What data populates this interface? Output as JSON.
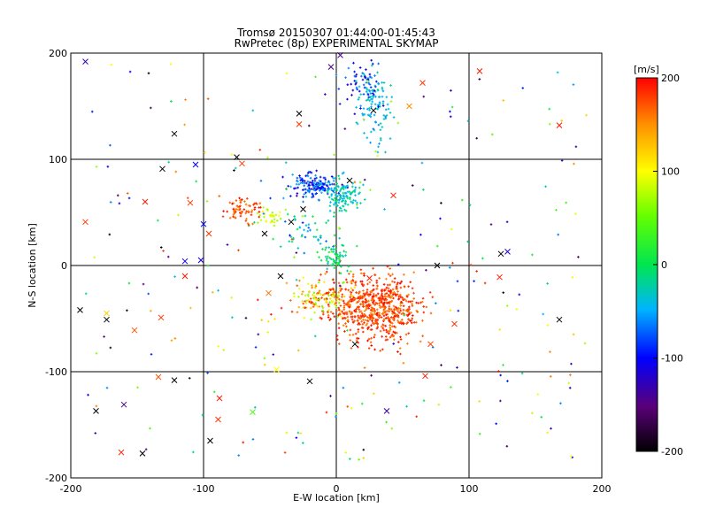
{
  "chart_data": {
    "type": "scatter",
    "title": "Tromsø 20150307 01:44:00-01:45:43",
    "subtitle": "RwPretec (8p) EXPERIMENTAL SKYMAP",
    "xlabel": "E-W location [km]",
    "ylabel": "N-S location [km]",
    "xlim": [
      -200,
      200
    ],
    "ylim": [
      -200,
      200
    ],
    "x_ticks": [
      "-200",
      "-100",
      "0",
      "100",
      "200"
    ],
    "y_ticks": [
      "-200",
      "-100",
      "0",
      "100",
      "200"
    ],
    "grid": true,
    "colorbar": {
      "label": "[m/s]",
      "range": [
        -200,
        200
      ],
      "ticks": [
        "-200",
        "-100",
        "0",
        "100",
        "200"
      ],
      "colormap": "rainbow (black-purple-blue-cyan-green-yellow-orange-red)"
    },
    "clusters": [
      {
        "cx": 30,
        "cy": -40,
        "rx": 30,
        "ry": 28,
        "count": 650,
        "v": [
          150,
          200
        ]
      },
      {
        "cx": -10,
        "cy": -30,
        "rx": 22,
        "ry": 18,
        "count": 160,
        "v": [
          40,
          200
        ]
      },
      {
        "cx": 0,
        "cy": 8,
        "rx": 8,
        "ry": 12,
        "count": 60,
        "v": [
          -40,
          30
        ]
      },
      {
        "cx": -15,
        "cy": 75,
        "rx": 18,
        "ry": 10,
        "count": 160,
        "v": [
          -130,
          -40
        ]
      },
      {
        "cx": 5,
        "cy": 65,
        "rx": 12,
        "ry": 16,
        "count": 120,
        "v": [
          -60,
          0
        ]
      },
      {
        "cx": 30,
        "cy": 150,
        "rx": 12,
        "ry": 35,
        "count": 110,
        "v": [
          -60,
          -20
        ]
      },
      {
        "cx": 20,
        "cy": 175,
        "rx": 15,
        "ry": 20,
        "count": 50,
        "v": [
          -120,
          -60
        ]
      },
      {
        "cx": -70,
        "cy": 52,
        "rx": 14,
        "ry": 10,
        "count": 70,
        "v": [
          150,
          200
        ]
      },
      {
        "cx": -50,
        "cy": 45,
        "rx": 10,
        "ry": 8,
        "count": 35,
        "v": [
          60,
          110
        ]
      },
      {
        "cx": -20,
        "cy": 30,
        "rx": 25,
        "ry": 20,
        "count": 50,
        "v": [
          -80,
          20
        ]
      },
      {
        "cx": 0,
        "cy": 0,
        "rx": 160,
        "ry": 160,
        "count": 260,
        "v": [
          -200,
          200
        ]
      }
    ],
    "x_markers": [
      {
        "x": -189,
        "y": 192,
        "v": -130
      },
      {
        "x": -131,
        "y": 91,
        "v": -200
      },
      {
        "x": -189,
        "y": 41,
        "v": 180
      },
      {
        "x": -173,
        "y": -45,
        "v": 120
      },
      {
        "x": -193,
        "y": -42,
        "v": -200
      },
      {
        "x": -173,
        "y": -51,
        "v": -200
      },
      {
        "x": -132,
        "y": -49,
        "v": 180
      },
      {
        "x": -152,
        "y": -61,
        "v": 170
      },
      {
        "x": -181,
        "y": -137,
        "v": -200
      },
      {
        "x": -160,
        "y": -131,
        "v": -140
      },
      {
        "x": -162,
        "y": -176,
        "v": 190
      },
      {
        "x": -146,
        "y": -177,
        "v": -200
      },
      {
        "x": -122,
        "y": -108,
        "v": -200
      },
      {
        "x": -134,
        "y": -105,
        "v": 170
      },
      {
        "x": -95,
        "y": -165,
        "v": -200
      },
      {
        "x": -89,
        "y": -145,
        "v": 180
      },
      {
        "x": -63,
        "y": -138,
        "v": 40
      },
      {
        "x": -88,
        "y": -125,
        "v": 190
      },
      {
        "x": -114,
        "y": 4,
        "v": -110
      },
      {
        "x": -102,
        "y": 5,
        "v": -110
      },
      {
        "x": -114,
        "y": -10,
        "v": 190
      },
      {
        "x": -96,
        "y": 30,
        "v": 180
      },
      {
        "x": -100,
        "y": 39,
        "v": -100
      },
      {
        "x": -106,
        "y": 95,
        "v": -100
      },
      {
        "x": -75,
        "y": 102,
        "v": -200
      },
      {
        "x": -71,
        "y": 96,
        "v": 180
      },
      {
        "x": -28,
        "y": 143,
        "v": -200
      },
      {
        "x": -28,
        "y": 133,
        "v": 180
      },
      {
        "x": 28,
        "y": 146,
        "v": -200
      },
      {
        "x": 10,
        "y": 80,
        "v": -200
      },
      {
        "x": 55,
        "y": 150,
        "v": 150
      },
      {
        "x": 108,
        "y": 183,
        "v": 190
      },
      {
        "x": 168,
        "y": 132,
        "v": 190
      },
      {
        "x": 129,
        "y": 13,
        "v": -120
      },
      {
        "x": 124,
        "y": 11,
        "v": -200
      },
      {
        "x": 168,
        "y": -51,
        "v": -200
      },
      {
        "x": 123,
        "y": -11,
        "v": 190
      },
      {
        "x": 89,
        "y": -55,
        "v": 180
      },
      {
        "x": 38,
        "y": -137,
        "v": -130
      },
      {
        "x": 25,
        "y": -12,
        "v": 190
      },
      {
        "x": 14,
        "y": -74,
        "v": -200
      },
      {
        "x": 71,
        "y": -74,
        "v": 180
      },
      {
        "x": 67,
        "y": -104,
        "v": 190
      },
      {
        "x": 76,
        "y": 0,
        "v": -200
      },
      {
        "x": -42,
        "y": -10,
        "v": -200
      },
      {
        "x": -51,
        "y": -26,
        "v": 160
      },
      {
        "x": -54,
        "y": 30,
        "v": -200
      },
      {
        "x": -25,
        "y": 53,
        "v": -200
      },
      {
        "x": -34,
        "y": 41,
        "v": -200
      },
      {
        "x": -110,
        "y": 59,
        "v": 180
      },
      {
        "x": -144,
        "y": 60,
        "v": 190
      },
      {
        "x": -122,
        "y": 124,
        "v": -200
      },
      {
        "x": 43,
        "y": 66,
        "v": 190
      },
      {
        "x": 3,
        "y": 198,
        "v": -140
      },
      {
        "x": -4,
        "y": 187,
        "v": -140
      },
      {
        "x": 65,
        "y": 172,
        "v": 180
      },
      {
        "x": -45,
        "y": -98,
        "v": 100
      },
      {
        "x": -20,
        "y": -109,
        "v": -200
      }
    ]
  }
}
